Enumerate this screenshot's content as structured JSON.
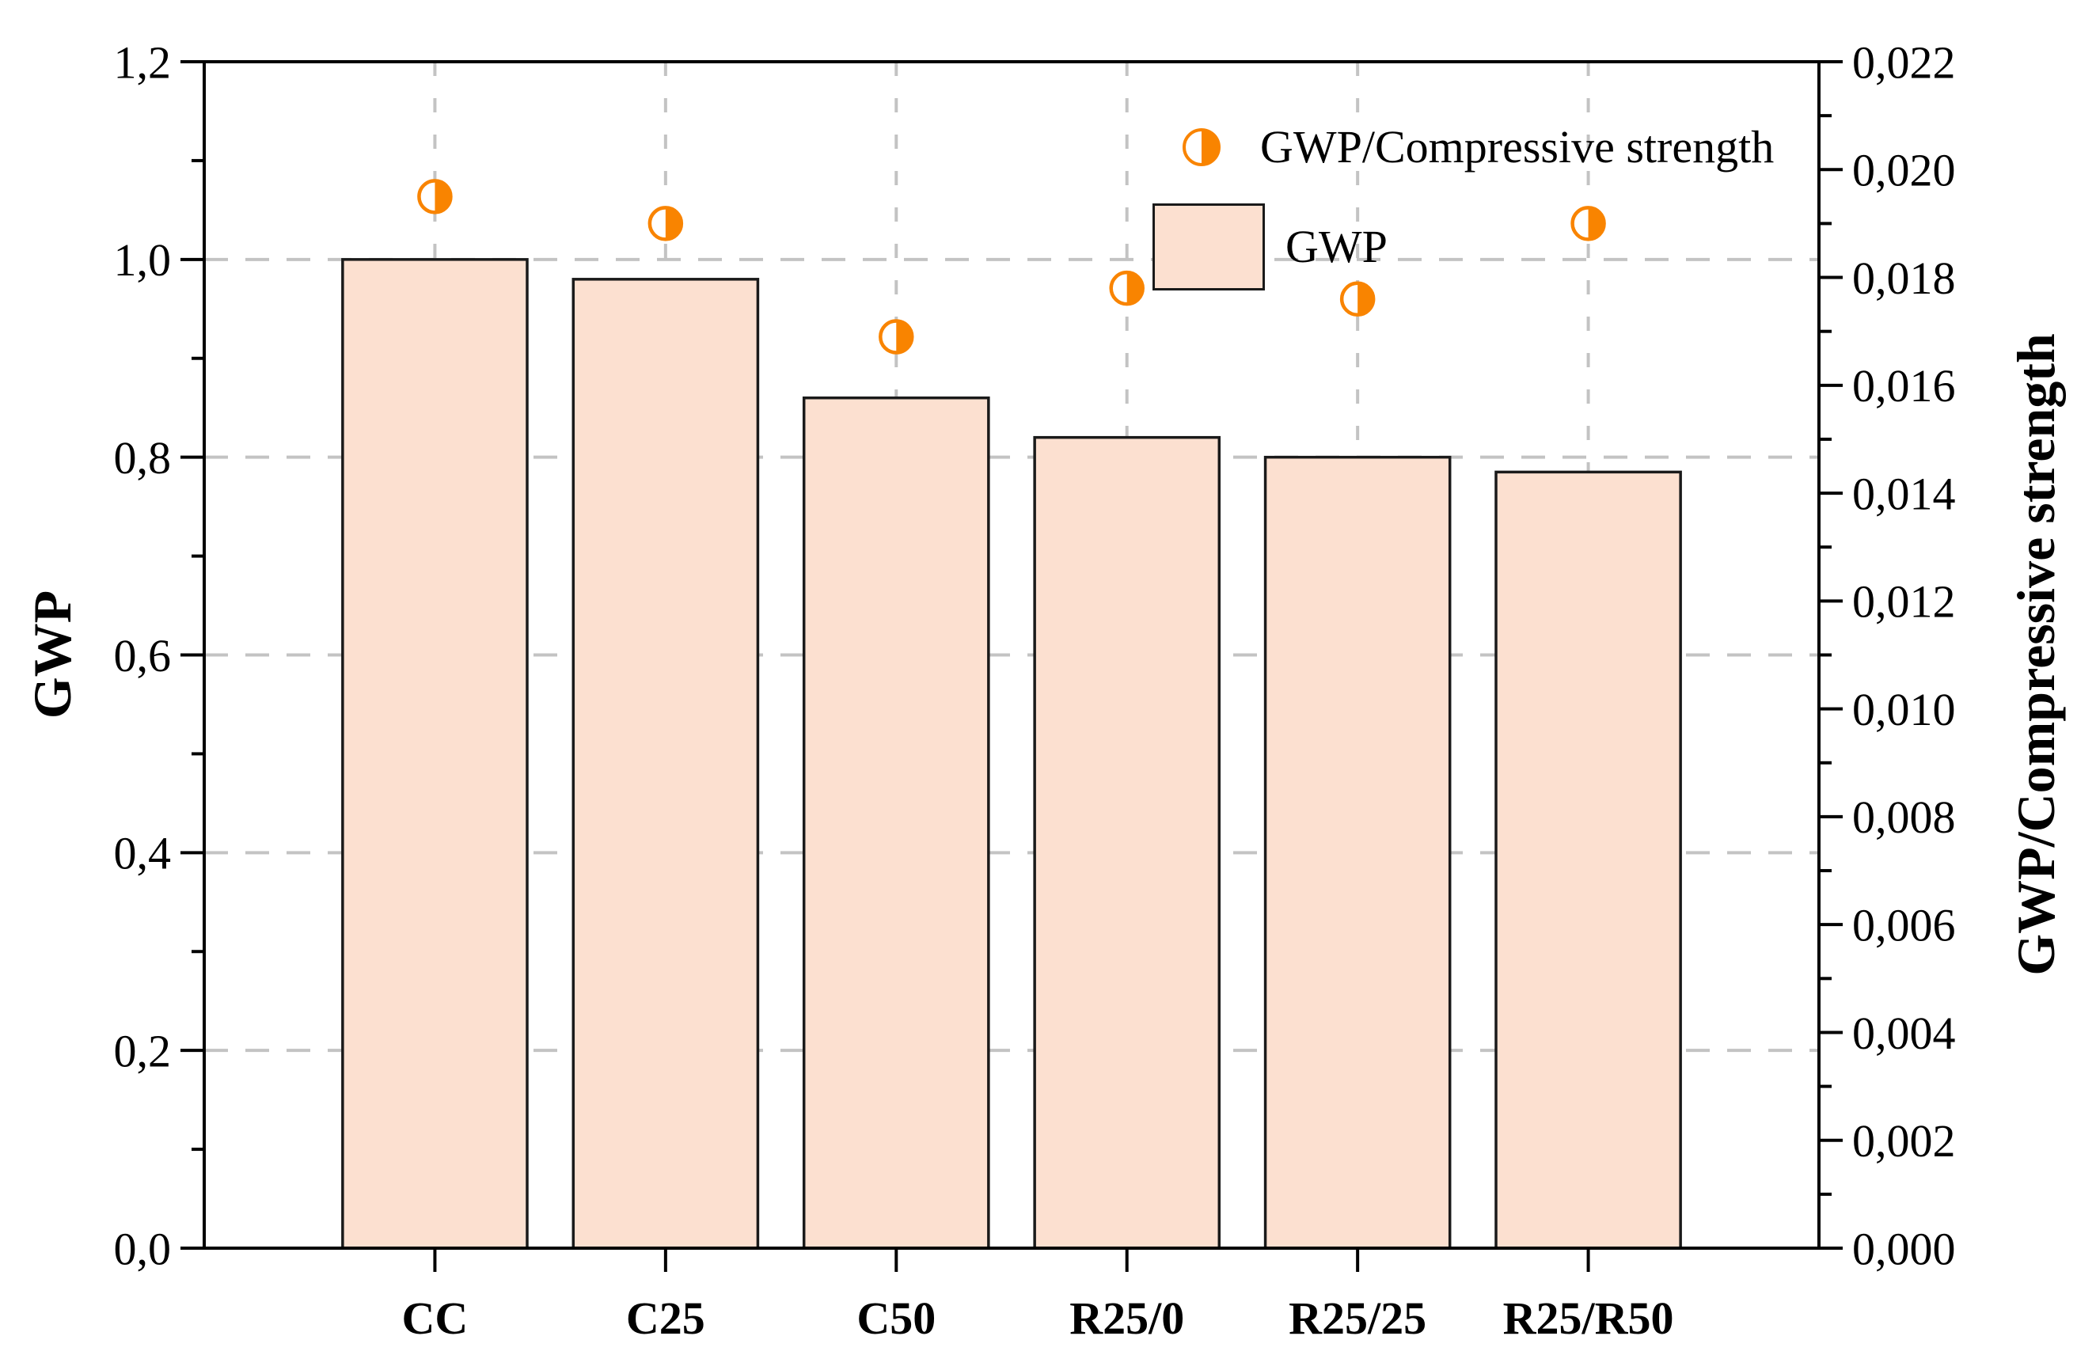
{
  "chart_data": {
    "type": "bar",
    "subtype": "bar-with-scatter-overlay",
    "title": "",
    "categories": [
      "CC",
      "C25",
      "C50",
      "R25/0",
      "R25/25",
      "R25/R50"
    ],
    "series": [
      {
        "name": "GWP",
        "type": "bar",
        "axis": "left",
        "values": [
          1.0,
          0.98,
          0.86,
          0.82,
          0.8,
          0.785
        ]
      },
      {
        "name": "GWP/Compressive strength",
        "type": "scatter",
        "axis": "right",
        "marker": "half-filled-circle",
        "values": [
          0.0195,
          0.019,
          0.0169,
          0.0178,
          0.0176,
          0.019
        ]
      }
    ],
    "left_axis": {
      "label": "GWP",
      "min": 0.0,
      "max": 1.2,
      "major_step": 0.2,
      "minor_step": 0.1,
      "tick_labels": [
        "0,0",
        "0,2",
        "0,4",
        "0,6",
        "0,8",
        "1,0",
        "1,2"
      ]
    },
    "right_axis": {
      "label": "GWP/Compressive strength",
      "min": 0.0,
      "max": 0.022,
      "major_step": 0.002,
      "minor_step": 0.001,
      "tick_labels": [
        "0,000",
        "0,002",
        "0,004",
        "0,006",
        "0,008",
        "0,010",
        "0,012",
        "0,014",
        "0,016",
        "0,018",
        "0,020",
        "0,022"
      ]
    },
    "x_axis": {
      "label": "",
      "tick_labels": [
        "CC",
        "C25",
        "C50",
        "R25/0",
        "R25/25",
        "R25/R50"
      ]
    },
    "legend": {
      "position": "top-right-inside",
      "items": [
        {
          "label": "GWP/Compressive strength",
          "marker": "half-filled-circle"
        },
        {
          "label": "GWP",
          "marker": "bar-swatch"
        }
      ]
    },
    "grid": true,
    "decimal_separator": ",",
    "colors": {
      "bar_fill": "#FCE0D0",
      "bar_stroke": "#1A1A1A",
      "marker_orange": "#F98400",
      "grid": "#C3C3C3",
      "axis": "#000000",
      "background": "#FFFFFF"
    }
  }
}
